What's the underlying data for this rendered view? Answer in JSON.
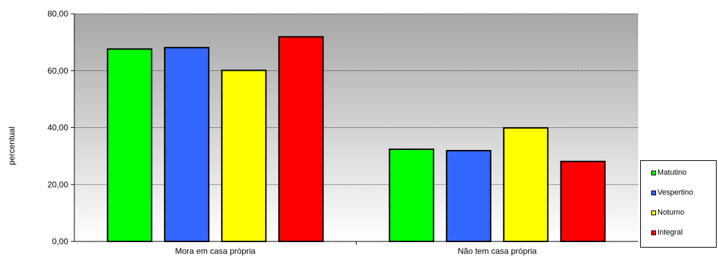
{
  "chart_data": {
    "type": "bar",
    "categories": [
      "Mora em casa própria",
      "Não tem casa própria"
    ],
    "series": [
      {
        "name": "Matutino",
        "values": [
          67.6,
          32.4
        ],
        "color": "#00ff00"
      },
      {
        "name": "Vespertino",
        "values": [
          68.1,
          31.9
        ],
        "color": "#3366ff"
      },
      {
        "name": "Noturno",
        "values": [
          60.1,
          39.9
        ],
        "color": "#ffff00"
      },
      {
        "name": "Integral",
        "values": [
          71.9,
          28.1
        ],
        "color": "#ff0000"
      }
    ],
    "ylabel": "percentual",
    "ylim": [
      0,
      80
    ],
    "yticks": [
      "0,00",
      "20,00",
      "40,00",
      "60,00",
      "80,00"
    ],
    "grid": true,
    "legend_position": "right"
  }
}
